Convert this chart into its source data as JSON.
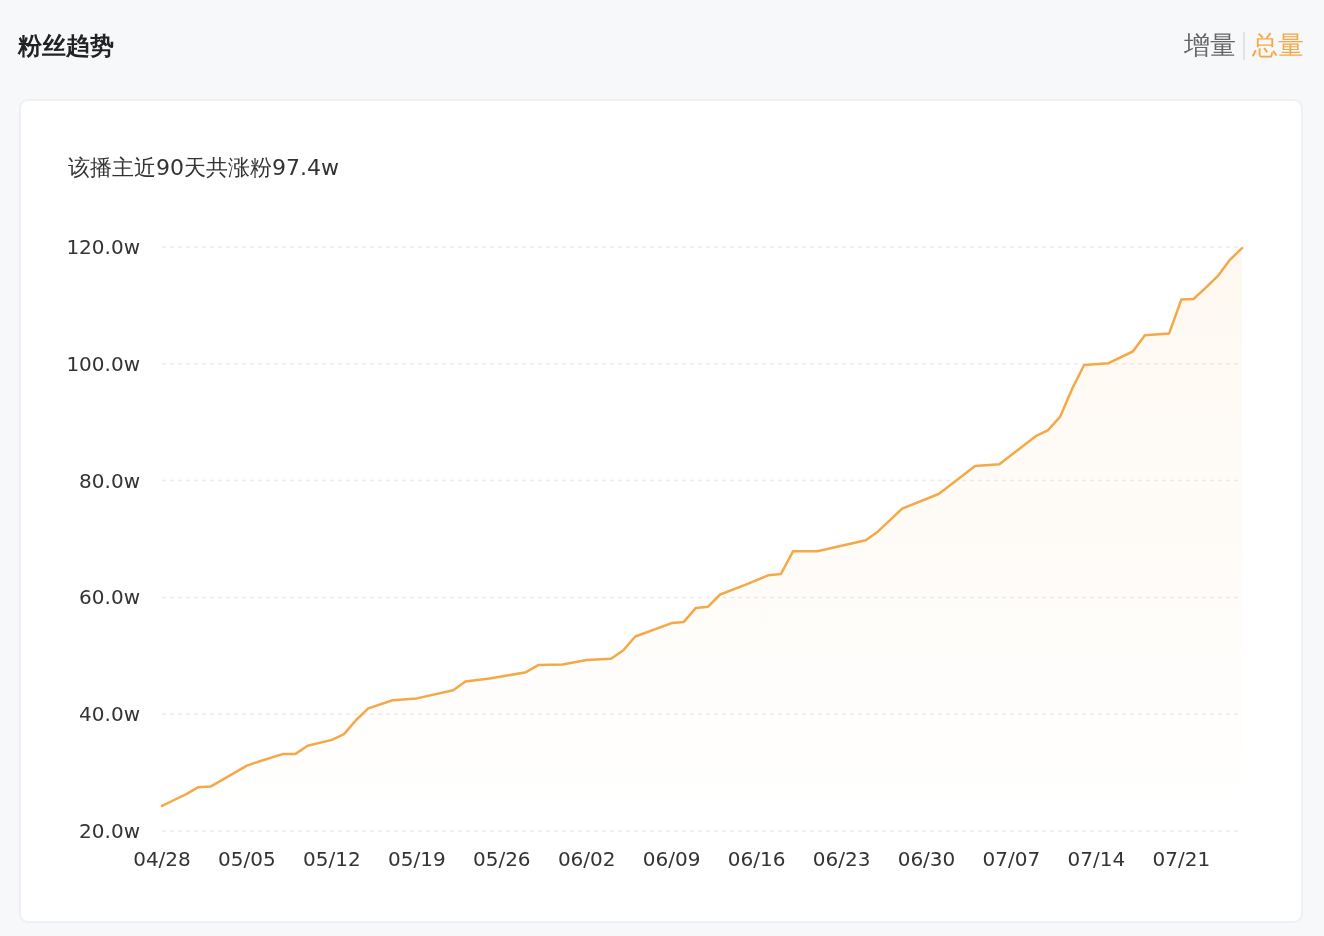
{
  "chart_data": {
    "type": "area",
    "title": "粉丝趋势",
    "subtitle": "该播主近90天共涨粉97.4w",
    "annotations": [
      "增量",
      "总量"
    ],
    "x": [
      "--04-28",
      "--04-29",
      "--04-30",
      "--05-01",
      "--05-02",
      "--05-03",
      "--05-05",
      "--05-06",
      "--05-08",
      "--05-09",
      "--05-10",
      "--05-12",
      "--05-13",
      "--05-14",
      "--05-15",
      "--05-17",
      "--05-19",
      "--05-22",
      "--05-23",
      "--05-25",
      "--05-28",
      "--05-29",
      "--05-31",
      "--06-02",
      "--06-04",
      "--06-05",
      "--06-06",
      "--06-09",
      "--06-10",
      "--06-11",
      "--06-12",
      "--06-13",
      "--06-15",
      "--06-17",
      "--06-18",
      "--06-19",
      "--06-21",
      "--06-25",
      "--06-26",
      "--06-28",
      "--07-01",
      "--07-02",
      "--07-04",
      "--07-06",
      "--07-09",
      "--07-10",
      "--07-11",
      "--07-12",
      "--07-13",
      "--07-15",
      "--07-17",
      "--07-18",
      "--07-20",
      "--07-21",
      "--07-22",
      "--07-23",
      "--07-24",
      "--07-25",
      "--07-26"
    ],
    "series": [
      {
        "color": "#f5a847",
        "values": [
          24.3,
          25.3,
          26.3,
          27.5,
          27.6,
          28.8,
          31.2,
          31.9,
          33.2,
          33.2,
          34.6,
          35.6,
          36.6,
          39.0,
          41.0,
          42.4,
          42.7,
          44.1,
          45.6,
          46.1,
          47.2,
          48.4,
          48.5,
          49.3,
          49.5,
          50.9,
          53.3,
          55.6,
          55.8,
          58.2,
          58.4,
          60.5,
          62.1,
          63.8,
          64.0,
          67.9,
          67.9,
          69.8,
          71.3,
          75.2,
          77.7,
          79.3,
          82.5,
          82.8,
          87.6,
          88.6,
          90.9,
          95.7,
          99.8,
          100.1,
          102.1,
          104.9,
          105.2,
          111.0,
          111.1,
          113.0,
          115.0,
          117.8,
          119.8
        ]
      }
    ],
    "xlim": [
      "--04-28",
      "--07-26"
    ],
    "xticks": [
      {
        "value": "--04-28",
        "label": "04/28"
      },
      {
        "value": "--05-05",
        "label": "05/05"
      },
      {
        "value": "--05-12",
        "label": "05/12"
      },
      {
        "value": "--05-19",
        "label": "05/19"
      },
      {
        "value": "--05-26",
        "label": "05/26"
      },
      {
        "value": "--06-02",
        "label": "06/02"
      },
      {
        "value": "--06-09",
        "label": "06/09"
      },
      {
        "value": "--06-16",
        "label": "06/16"
      },
      {
        "value": "--06-23",
        "label": "06/23"
      },
      {
        "value": "--06-30",
        "label": "06/30"
      },
      {
        "value": "--07-07",
        "label": "07/07"
      },
      {
        "value": "--07-14",
        "label": "07/14"
      },
      {
        "value": "--07-21",
        "label": "07/21"
      }
    ],
    "ylim": [
      20,
      120
    ],
    "yticks": [
      {
        "value": 20,
        "label": "20.0w"
      },
      {
        "value": 40,
        "label": "40.0w"
      },
      {
        "value": 60,
        "label": "60.0w"
      },
      {
        "value": 80,
        "label": "80.0w"
      },
      {
        "value": 100,
        "label": "100.0w"
      },
      {
        "value": 120,
        "label": "120.0w"
      }
    ],
    "grid": "y"
  }
}
